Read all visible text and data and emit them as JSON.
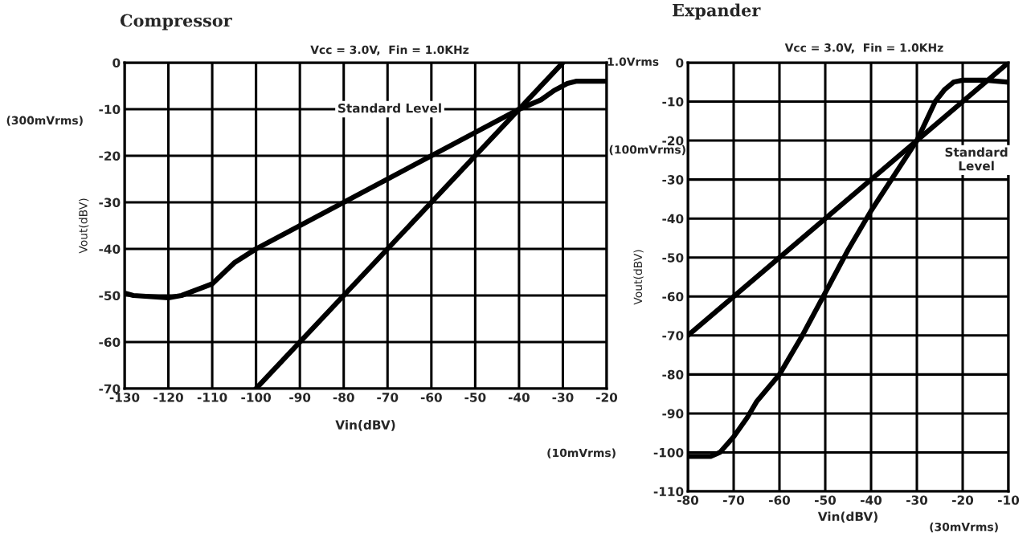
{
  "chart_data": [
    {
      "type": "line",
      "title": "Compressor",
      "subtitle": "Vcc = 3.0V,  Fin = 1.0KHz",
      "xlabel": "Vin(dBV)",
      "ylabel": "Vout(dBV)",
      "xlim": [
        -130,
        -20
      ],
      "xticks": [
        -130,
        -120,
        -110,
        -100,
        -90,
        -80,
        -70,
        -60,
        -50,
        -40,
        -30,
        -20
      ],
      "ylim": [
        -70,
        0
      ],
      "yticks": [
        -70,
        -60,
        -50,
        -40,
        -30,
        -20,
        -10,
        0
      ],
      "grid": true,
      "series": [
        {
          "color": "#000000",
          "x": [
            -130,
            -128,
            -120,
            -117,
            -110,
            -105,
            -100,
            -95,
            -90,
            -80,
            -70,
            -60,
            -50,
            -40,
            -35,
            -32,
            -29,
            -27,
            -20
          ],
          "values": [
            -49.5,
            -50,
            -50.5,
            -50,
            -47.5,
            -43,
            -40,
            -37.5,
            -35,
            -30,
            -25,
            -20,
            -15,
            -10,
            -8,
            -6,
            -4.5,
            -4,
            -4
          ]
        },
        {
          "color": "#000000",
          "x": [
            -100,
            -30
          ],
          "values": [
            -70,
            0
          ]
        }
      ],
      "annotations": [
        "Standard Level",
        "(300mVrms)",
        "(10mVrms)"
      ]
    },
    {
      "type": "line",
      "title": "Expander",
      "subtitle": "Vcc = 3.0V,  Fin = 1.0KHz",
      "xlabel": "Vin(dBV)",
      "ylabel": "Vout(dBV)",
      "xlim": [
        -80,
        -10
      ],
      "xticks": [
        -80,
        -70,
        -60,
        -50,
        -40,
        -30,
        -20,
        -10
      ],
      "ylim": [
        -110,
        0
      ],
      "yticks": [
        -110,
        -100,
        -90,
        -80,
        -70,
        -60,
        -50,
        -40,
        -30,
        -20,
        -10,
        0
      ],
      "grid": true,
      "series": [
        {
          "color": "#000000",
          "x": [
            -80,
            -75,
            -73,
            -70,
            -67,
            -65,
            -60,
            -55,
            -50,
            -45,
            -40,
            -35,
            -30,
            -28,
            -26,
            -24,
            -22,
            -20,
            -15,
            -10
          ],
          "values": [
            -101,
            -101,
            -100,
            -96,
            -91,
            -87,
            -80,
            -70,
            -59,
            -48,
            -38,
            -29,
            -20,
            -15,
            -10,
            -7,
            -5,
            -4.5,
            -4.5,
            -5
          ]
        },
        {
          "color": "#000000",
          "x": [
            -80,
            -10
          ],
          "values": [
            -70,
            0
          ]
        }
      ],
      "annotations": [
        "Standard\nLevel",
        "(100mVrms)",
        "1.0Vrms",
        "(30mVrms)"
      ]
    }
  ]
}
